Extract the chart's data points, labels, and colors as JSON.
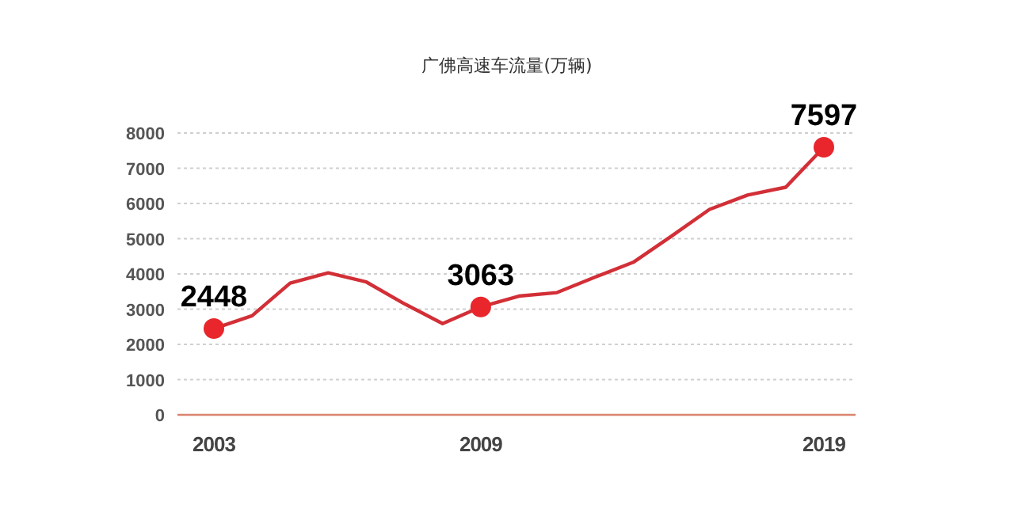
{
  "chart_data": {
    "type": "line",
    "title": "广佛高速车流量(万辆)",
    "categories": [
      "2003",
      null,
      null,
      null,
      null,
      null,
      null,
      "2009",
      null,
      null,
      null,
      null,
      null,
      null,
      null,
      null,
      "2019"
    ],
    "series": [
      {
        "color": "#d22f37",
        "values": [
          2448,
          2810,
          3740,
          4030,
          3770,
          3150,
          2590,
          3063,
          3370,
          3470,
          3910,
          4330,
          5070,
          5830,
          6240,
          6460,
          7597
        ],
        "line_style": "solid",
        "value_labels": [
          "2448",
          null,
          null,
          null,
          null,
          null,
          null,
          "3063",
          null,
          null,
          null,
          null,
          null,
          null,
          null,
          null,
          "7597"
        ]
      }
    ],
    "ylim": [
      0,
      8000
    ],
    "yticks": [
      0,
      1000,
      2000,
      3000,
      4000,
      5000,
      6000,
      7000,
      8000
    ],
    "grid": "y"
  }
}
